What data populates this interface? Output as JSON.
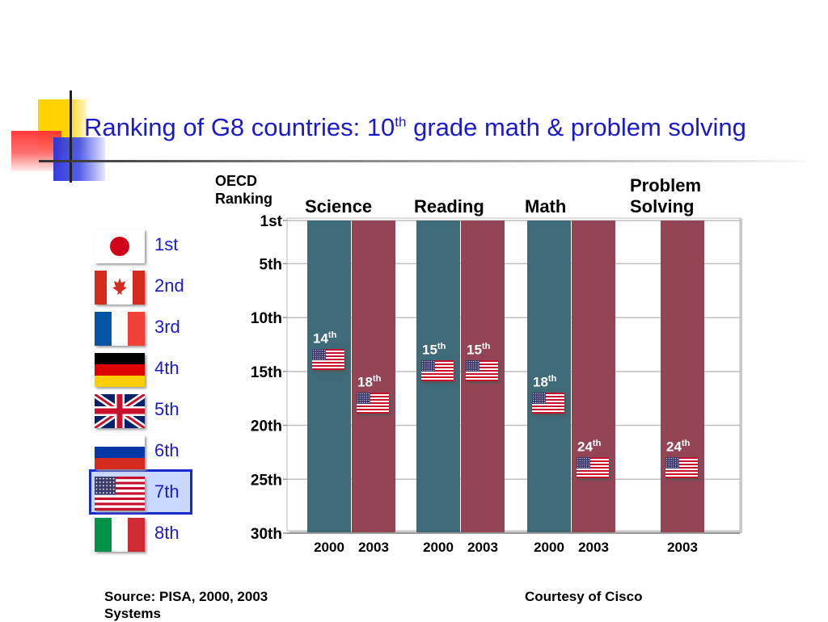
{
  "title": {
    "main": "Ranking of G8 countries: 10",
    "sup": "th",
    "rest": " grade math & problem solving"
  },
  "y_axis_title": [
    "OECD",
    "Ranking"
  ],
  "legend_ranks": [
    {
      "rank": "1st",
      "country": "Japan",
      "flag_icon": "japan-flag-icon"
    },
    {
      "rank": "2nd",
      "country": "Canada",
      "flag_icon": "canada-flag-icon"
    },
    {
      "rank": "3rd",
      "country": "France",
      "flag_icon": "france-flag-icon"
    },
    {
      "rank": "4th",
      "country": "Germany",
      "flag_icon": "germany-flag-icon"
    },
    {
      "rank": "5th",
      "country": "United Kingdom",
      "flag_icon": "uk-flag-icon"
    },
    {
      "rank": "6th",
      "country": "Russia",
      "flag_icon": "russia-flag-icon"
    },
    {
      "rank": "7th",
      "country": "United States",
      "flag_icon": "usa-flag-icon",
      "highlighted": true
    },
    {
      "rank": "8th",
      "country": "Italy",
      "flag_icon": "italy-flag-icon"
    }
  ],
  "colors": {
    "year_2000": "#3f6b78",
    "year_2003": "#934556",
    "title": "#1a1acc",
    "highlight_border": "#1a28d0"
  },
  "chart_data": {
    "type": "bar",
    "y_axis": {
      "title": "OECD Ranking",
      "inverted": true,
      "range": [
        1,
        30
      ],
      "ticks": [
        {
          "v": 1,
          "label": "1st"
        },
        {
          "v": 5,
          "label": "5th"
        },
        {
          "v": 10,
          "label": "10th"
        },
        {
          "v": 15,
          "label": "15th"
        },
        {
          "v": 20,
          "label": "20th"
        },
        {
          "v": 25,
          "label": "25th"
        },
        {
          "v": 30,
          "label": "30th"
        }
      ]
    },
    "grid": true,
    "groups": [
      {
        "name": "Science",
        "bars": [
          {
            "year": "2000",
            "us_rank": 14,
            "label": "14",
            "sup": "th"
          },
          {
            "year": "2003",
            "us_rank": 18,
            "label": "18",
            "sup": "th"
          }
        ]
      },
      {
        "name": "Reading",
        "bars": [
          {
            "year": "2000",
            "us_rank": 15,
            "label": "15",
            "sup": "th"
          },
          {
            "year": "2003",
            "us_rank": 15,
            "label": "15",
            "sup": "th"
          }
        ]
      },
      {
        "name": "Math",
        "bars": [
          {
            "year": "2000",
            "us_rank": 18,
            "label": "18",
            "sup": "th"
          },
          {
            "year": "2003",
            "us_rank": 24,
            "label": "24",
            "sup": "th"
          }
        ]
      },
      {
        "name": "Problem Solving",
        "name_lines": [
          "Problem",
          "Solving"
        ],
        "bars": [
          {
            "year": "2003",
            "us_rank": 24,
            "label": "24",
            "sup": "th"
          }
        ]
      }
    ]
  },
  "footer": {
    "source": "Source: PISA, 2000, 2003",
    "source_line2": "Systems",
    "courtesy": "Courtesy of Cisco"
  }
}
